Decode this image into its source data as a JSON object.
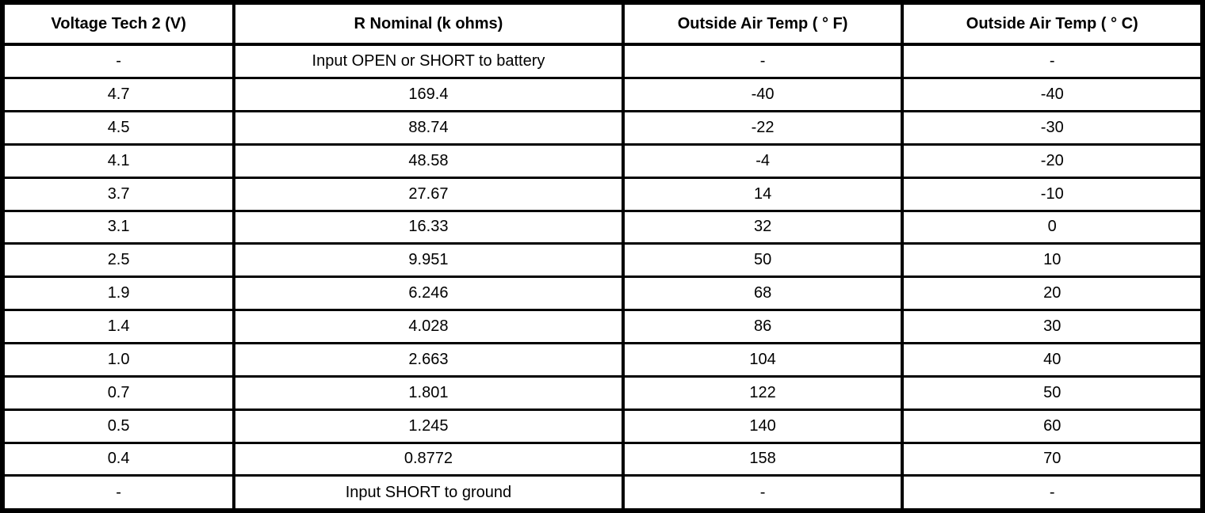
{
  "colors": {
    "border": "#000000",
    "text": "#000000",
    "background": "#ffffff"
  },
  "table": {
    "headers": [
      "Voltage Tech 2 (V)",
      "R Nominal (k ohms)",
      "Outside Air Temp ( ° F)",
      "Outside Air Temp ( ° C)"
    ],
    "rows": [
      [
        "-",
        "Input OPEN or SHORT to battery",
        "-",
        "-"
      ],
      [
        "4.7",
        "169.4",
        "-40",
        "-40"
      ],
      [
        "4.5",
        "88.74",
        "-22",
        "-30"
      ],
      [
        "4.1",
        "48.58",
        "-4",
        "-20"
      ],
      [
        "3.7",
        "27.67",
        "14",
        "-10"
      ],
      [
        "3.1",
        "16.33",
        "32",
        "0"
      ],
      [
        "2.5",
        "9.951",
        "50",
        "10"
      ],
      [
        "1.9",
        "6.246",
        "68",
        "20"
      ],
      [
        "1.4",
        "4.028",
        "86",
        "30"
      ],
      [
        "1.0",
        "2.663",
        "104",
        "40"
      ],
      [
        "0.7",
        "1.801",
        "122",
        "50"
      ],
      [
        "0.5",
        "1.245",
        "140",
        "60"
      ],
      [
        "0.4",
        "0.8772",
        "158",
        "70"
      ],
      [
        "-",
        "Input SHORT to ground",
        "-",
        "-"
      ]
    ]
  }
}
